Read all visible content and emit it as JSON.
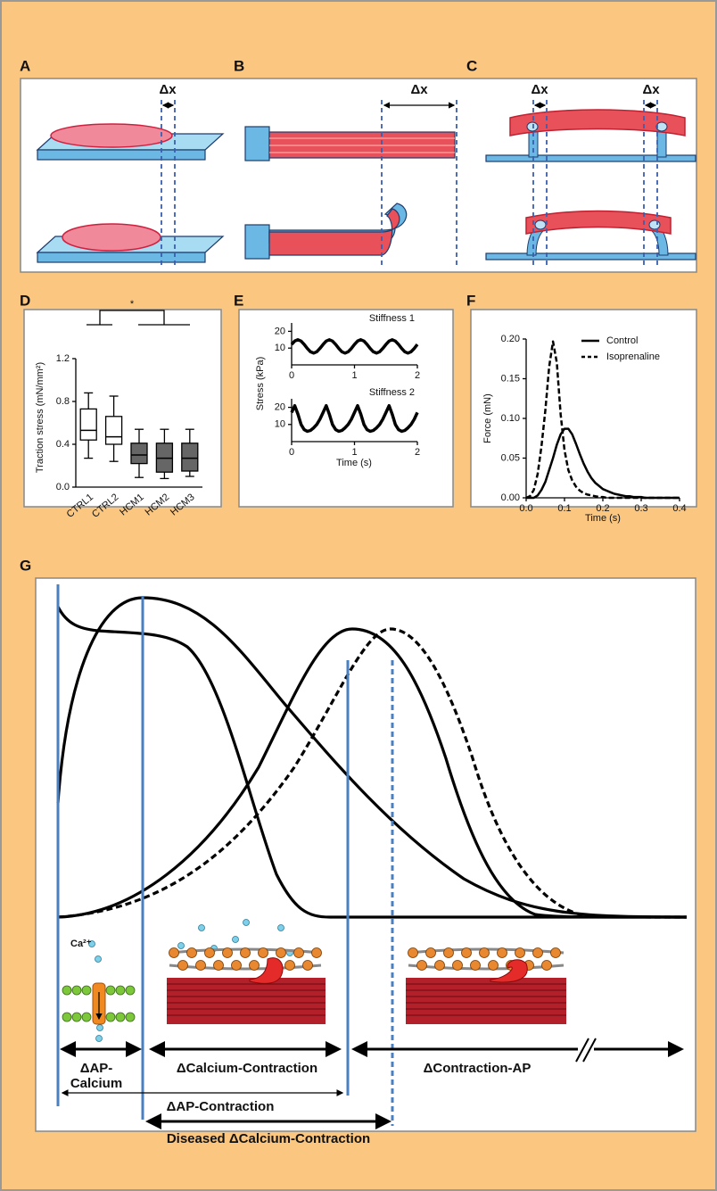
{
  "figure": {
    "labels": [
      "A",
      "B",
      "C",
      "D",
      "E",
      "F",
      "G"
    ],
    "a": {
      "delta": "Δx"
    },
    "b": {
      "delta": "Δx"
    },
    "c": {
      "deltas": [
        "Δx",
        "Δx"
      ]
    },
    "g": {
      "calcium_ion": "Ca²⁺",
      "ap_calcium": [
        "ΔAP-",
        "Calcium"
      ],
      "calcium_contraction": "ΔCalcium-Contraction",
      "contraction_ap": "ΔContraction-AP",
      "ap_contraction": "ΔAP-Contraction",
      "diseased": "Diseased ΔCalcium-Contraction"
    }
  },
  "chart_data": [
    {
      "type": "box",
      "ylabel": "Traction stress (mN/mm²)",
      "annotation": "*",
      "categories": [
        "CTRL1",
        "CTRL2",
        "HCM1",
        "HCM2",
        "HCM3"
      ],
      "whisker_low": [
        0.27,
        0.24,
        0.09,
        0.08,
        0.1
      ],
      "q1": [
        0.44,
        0.4,
        0.22,
        0.14,
        0.15
      ],
      "median": [
        0.53,
        0.47,
        0.3,
        0.27,
        0.27
      ],
      "q3": [
        0.73,
        0.66,
        0.41,
        0.41,
        0.41
      ],
      "whisker_high": [
        0.88,
        0.85,
        0.54,
        0.54,
        0.54
      ],
      "colors": [
        "#ffffff",
        "#ffffff",
        "#666666",
        "#666666",
        "#666666"
      ],
      "ylim": [
        0,
        1.2
      ],
      "yticks": [
        {
          "value": 0,
          "label": "0.0"
        },
        0.4,
        0.8,
        1.2
      ]
    },
    {
      "type": "line",
      "ylabel": "Stress (kPa)",
      "annotation": "Stiffness 1",
      "x": [
        0,
        0.05,
        0.1,
        0.15,
        0.2,
        0.25,
        0.3,
        0.35,
        0.4,
        0.45,
        0.5,
        0.55,
        0.6,
        0.65,
        0.7,
        0.75,
        0.8,
        0.85,
        0.9,
        0.95,
        1,
        1.05,
        1.1,
        1.15,
        1.2,
        1.25,
        1.3,
        1.35,
        1.4,
        1.45,
        1.5,
        1.55,
        1.6,
        1.65,
        1.7,
        1.75,
        1.8,
        1.85,
        1.9,
        1.95,
        2
      ],
      "series": [
        {
          "color": "#000000",
          "values": [
            12.2,
            14.2,
            15,
            14.2,
            12.2,
            9.8,
            7.8,
            7,
            7.8,
            9.8,
            12.2,
            14.2,
            15,
            14.2,
            12.2,
            9.8,
            7.8,
            7,
            7.8,
            9.8,
            12.2,
            14.2,
            15,
            14.2,
            12.2,
            9.8,
            7.8,
            7,
            7.8,
            9.8,
            12.2,
            14.2,
            15,
            14.2,
            12.2,
            9.8,
            7.8,
            7,
            7.8,
            9.8,
            12.2
          ]
        }
      ],
      "xlim": [
        0,
        2
      ],
      "xticks": [
        0,
        1,
        2
      ],
      "ylim": [
        0,
        25
      ],
      "yticks": [
        10,
        20
      ]
    },
    {
      "type": "line",
      "xlabel": "Time (s)",
      "annotation": "Stiffness 2",
      "x": [
        0,
        0.05,
        0.1,
        0.15,
        0.2,
        0.25,
        0.3,
        0.35,
        0.4,
        0.45,
        0.5,
        0.55,
        0.6,
        0.65,
        0.7,
        0.75,
        0.8,
        0.85,
        0.9,
        0.95,
        1,
        1.05,
        1.1,
        1.15,
        1.2,
        1.25,
        1.3,
        1.35,
        1.4,
        1.45,
        1.5,
        1.55,
        1.6,
        1.65,
        1.7,
        1.75,
        1.8,
        1.85,
        1.9,
        1.95,
        2
      ],
      "series": [
        {
          "color": "#000000",
          "values": [
            17,
            21,
            16,
            10,
            7,
            6,
            6.5,
            8,
            10,
            13,
            17,
            21,
            16,
            10,
            7,
            6,
            6.5,
            8,
            10,
            13,
            17,
            21,
            16,
            10,
            7,
            6,
            6.5,
            8,
            10,
            13,
            17,
            21,
            16,
            10,
            7,
            6,
            6.5,
            8,
            10,
            13,
            17
          ]
        }
      ],
      "xlim": [
        0,
        2
      ],
      "xticks": [
        0,
        1,
        2
      ],
      "ylim": [
        0,
        25
      ],
      "yticks": [
        10,
        20
      ]
    },
    {
      "type": "line",
      "xlabel": "Time (s)",
      "ylabel": "Force (mN)",
      "legend": "upper right",
      "x": [
        0,
        0.01,
        0.02,
        0.03,
        0.04,
        0.05,
        0.06,
        0.07,
        0.08,
        0.09,
        0.1,
        0.11,
        0.12,
        0.13,
        0.14,
        0.15,
        0.16,
        0.17,
        0.18,
        0.19,
        0.2,
        0.21,
        0.22,
        0.23,
        0.24,
        0.25,
        0.26,
        0.27,
        0.28,
        0.29,
        0.3,
        0.31,
        0.32,
        0.33,
        0.34,
        0.35,
        0.36,
        0.37,
        0.38,
        0.39,
        0.4
      ],
      "series": [
        {
          "name": "Control",
          "color": "#000000",
          "dashed": false,
          "values": [
            0,
            0,
            0,
            0.003,
            0.01,
            0.02,
            0.035,
            0.05,
            0.067,
            0.08,
            0.087,
            0.087,
            0.08,
            0.068,
            0.055,
            0.043,
            0.033,
            0.025,
            0.019,
            0.015,
            0.011,
            0.009,
            0.007,
            0.005,
            0.004,
            0.003,
            0.002,
            0.002,
            0.001,
            0.001,
            0.001,
            0,
            0,
            0,
            0,
            0,
            0,
            0,
            0,
            0,
            0
          ]
        },
        {
          "name": "Isoprenaline",
          "color": "#000000",
          "dashed": true,
          "values": [
            0,
            0.002,
            0.01,
            0.03,
            0.065,
            0.11,
            0.165,
            0.197,
            0.17,
            0.105,
            0.06,
            0.035,
            0.022,
            0.014,
            0.009,
            0.006,
            0.004,
            0.003,
            0.002,
            0.001,
            0.001,
            0,
            0,
            0,
            0,
            0,
            0,
            0,
            0,
            0,
            0,
            0,
            0,
            0,
            0,
            0,
            0,
            0,
            0,
            0,
            0
          ]
        }
      ],
      "xlim": [
        0,
        0.4
      ],
      "xticks": [
        {
          "value": 0,
          "label": "0.0"
        },
        0.1,
        0.2,
        0.3,
        0.4
      ],
      "ylim": [
        0,
        0.2
      ],
      "yticks": [
        {
          "value": 0,
          "label": "0.00"
        },
        0.05,
        {
          "value": 0.1,
          "label": "0.10"
        },
        0.15,
        {
          "value": 0.2,
          "label": "0.20"
        }
      ]
    }
  ]
}
